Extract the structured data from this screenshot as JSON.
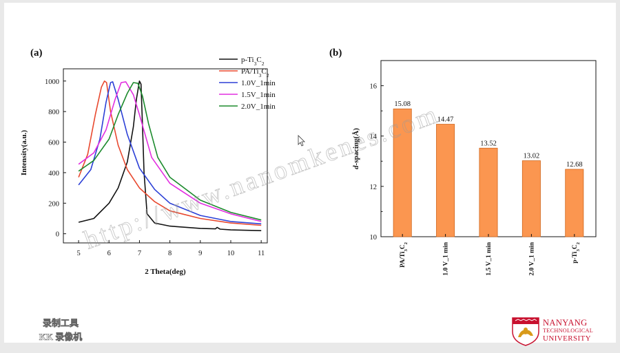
{
  "chart_data": [
    {
      "type": "line",
      "panel_label": "(a)",
      "xlabel": "2 Theta(deg)",
      "ylabel": "Intensity(a.u.)",
      "xlim": [
        4.5,
        11.2
      ],
      "ylim": [
        -60,
        1080
      ],
      "xticks": [
        5,
        6,
        7,
        8,
        9,
        10,
        11
      ],
      "yticks": [
        0,
        200,
        400,
        600,
        800,
        1000
      ],
      "legend_position": "top-right",
      "series": [
        {
          "name": "p-Ti3C2",
          "legend": [
            "p-Ti",
            "3",
            "C",
            "2"
          ],
          "color": "#111111",
          "x": [
            5.0,
            5.5,
            6.0,
            6.3,
            6.6,
            6.8,
            6.9,
            7.0,
            7.05,
            7.1,
            7.15,
            7.25,
            7.5,
            8.0,
            9.0,
            9.5,
            9.55,
            9.65,
            10.0,
            11.0
          ],
          "y": [
            75,
            100,
            200,
            300,
            470,
            700,
            880,
            1000,
            980,
            700,
            400,
            130,
            70,
            50,
            35,
            32,
            42,
            30,
            25,
            20
          ]
        },
        {
          "name": "PA/Ti3C2",
          "legend": [
            "PA/Ti",
            "3",
            "C",
            "2"
          ],
          "color": "#e8482e",
          "x": [
            5.0,
            5.3,
            5.55,
            5.75,
            5.85,
            5.92,
            6.05,
            6.3,
            6.6,
            7.0,
            7.5,
            8.0,
            9.0,
            10.0,
            11.0
          ],
          "y": [
            370,
            520,
            780,
            960,
            1000,
            990,
            800,
            580,
            420,
            300,
            210,
            150,
            100,
            70,
            55
          ]
        },
        {
          "name": "1.0V_1min",
          "legend": [
            "1.0V_1min"
          ],
          "color": "#2b3fd6",
          "x": [
            5.0,
            5.4,
            5.7,
            5.9,
            6.05,
            6.12,
            6.3,
            6.6,
            7.0,
            7.5,
            8.0,
            9.0,
            10.0,
            11.0
          ],
          "y": [
            320,
            420,
            620,
            860,
            990,
            995,
            880,
            650,
            430,
            290,
            200,
            120,
            80,
            65
          ]
        },
        {
          "name": "1.5V_1min",
          "legend": [
            "1.5V_1min"
          ],
          "color": "#e22ee0",
          "x": [
            5.0,
            5.5,
            5.9,
            6.2,
            6.4,
            6.55,
            6.8,
            7.0,
            7.4,
            8.0,
            9.0,
            10.0,
            11.0
          ],
          "y": [
            455,
            530,
            680,
            880,
            990,
            995,
            910,
            780,
            500,
            330,
            200,
            130,
            80
          ]
        },
        {
          "name": "2.0V_1min",
          "legend": [
            "2.0V_1min"
          ],
          "color": "#1b8a2c",
          "x": [
            5.0,
            5.5,
            6.0,
            6.3,
            6.6,
            6.8,
            6.95,
            7.1,
            7.3,
            7.6,
            8.0,
            9.0,
            10.0,
            11.0
          ],
          "y": [
            410,
            480,
            620,
            780,
            920,
            990,
            985,
            900,
            720,
            500,
            370,
            220,
            140,
            90
          ]
        }
      ]
    },
    {
      "type": "bar",
      "panel_label": "(b)",
      "ylabel": "d-spacing(Å)",
      "ylabel_italic": "d",
      "ylabel_rest": "-spacing(Å)",
      "ylim": [
        10,
        17
      ],
      "yticks": [
        10,
        12,
        14,
        16
      ],
      "bar_color": "#fb9650",
      "categories": [
        {
          "parts": [
            "PA/Ti",
            "3",
            "C",
            "2"
          ]
        },
        {
          "parts": [
            "1.0 V_1 min"
          ]
        },
        {
          "parts": [
            "1.5 V_1 min"
          ]
        },
        {
          "parts": [
            "2.0 V_1 min"
          ]
        },
        {
          "parts": [
            "p-Ti",
            "3",
            "C",
            "2"
          ]
        }
      ],
      "values": [
        15.08,
        14.47,
        13.52,
        13.02,
        12.68
      ],
      "value_labels": [
        "15.08",
        "14.47",
        "13.52",
        "13.02",
        "12.68"
      ]
    }
  ],
  "overlay": {
    "watermark": "http://www.nanomkenes.com",
    "recorder_line1": "录制工具",
    "recorder_line2": "KK 录像机"
  },
  "logo": {
    "line1": "NANYANG",
    "line2": "TECHNOLOGICAL",
    "line3": "UNIVERSITY",
    "crest_color": "#c8102e"
  }
}
